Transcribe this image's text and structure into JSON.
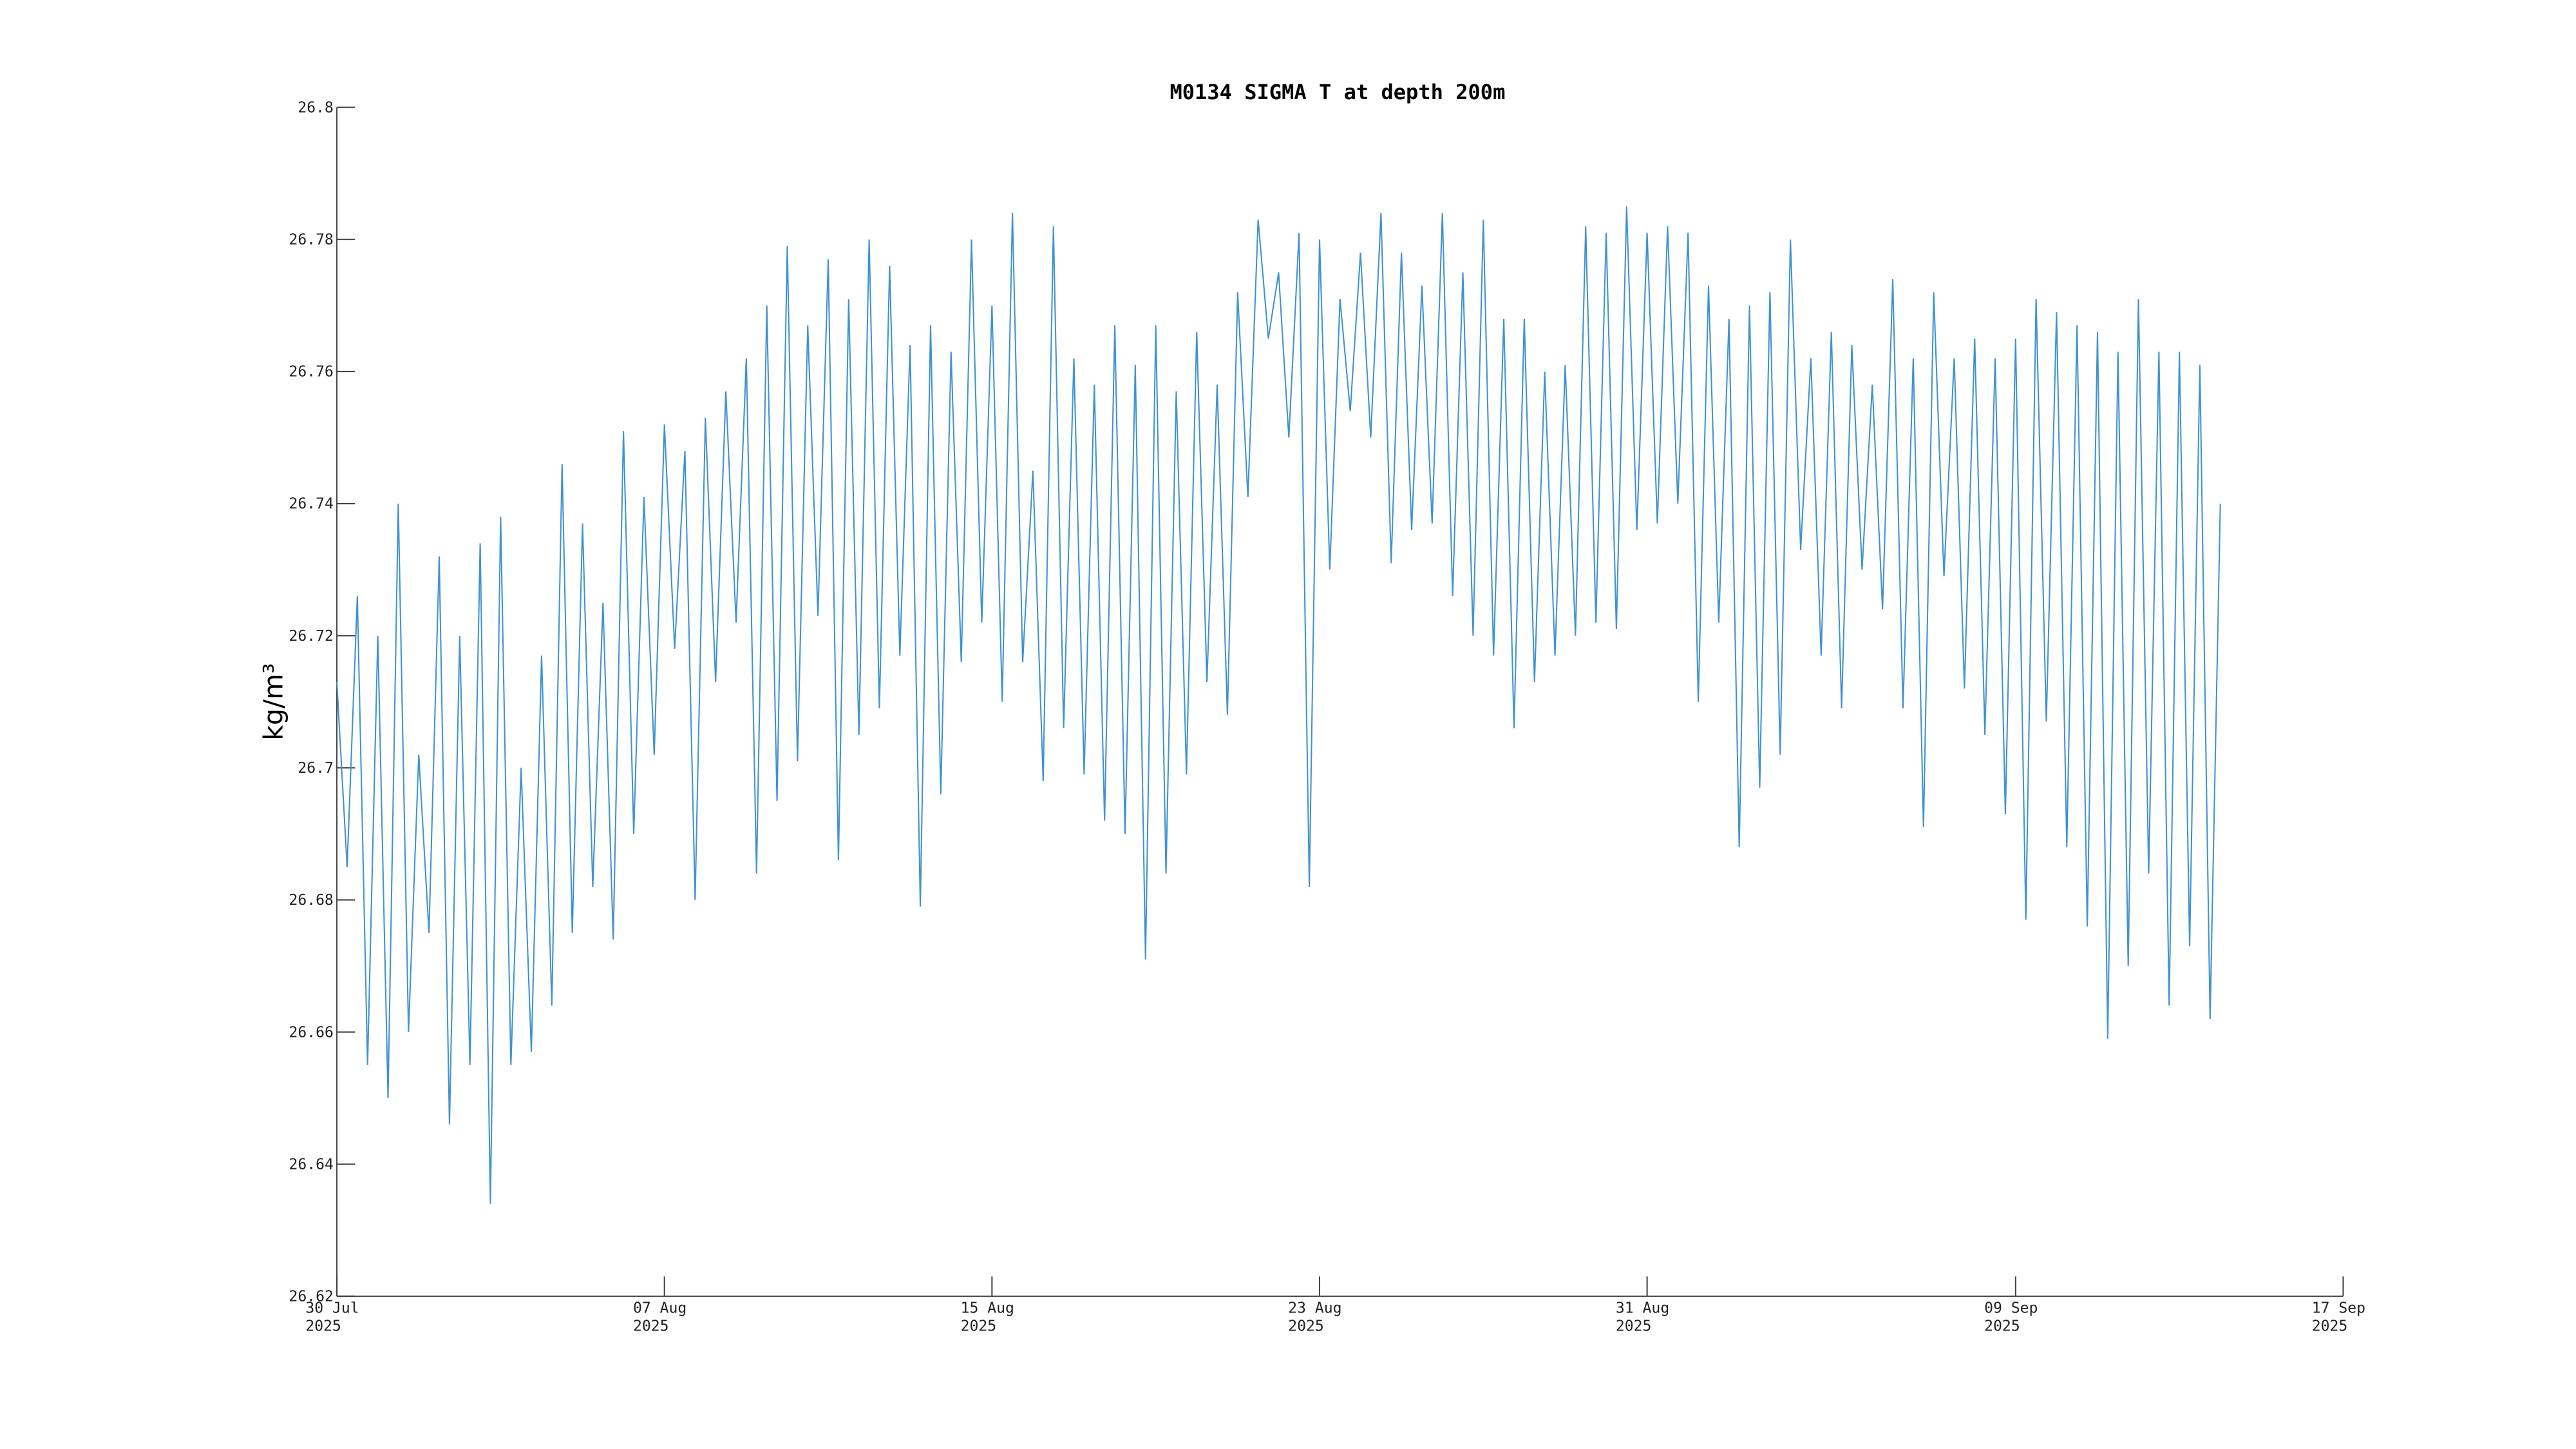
{
  "chart_data": {
    "type": "line",
    "title": "M0134 SIGMA T at depth 200m",
    "y_label": "kg/m³",
    "color": "#3f93cf",
    "xlim": [
      0,
      49
    ],
    "xticks": [
      {
        "value": 0,
        "label": "30 Jul\n2025"
      },
      {
        "value": 8,
        "label": "07 Aug\n2025"
      },
      {
        "value": 16,
        "label": "15 Aug\n2025"
      },
      {
        "value": 24,
        "label": "23 Aug\n2025"
      },
      {
        "value": 32,
        "label": "31 Aug\n2025"
      },
      {
        "value": 41,
        "label": "09 Sep\n2025"
      },
      {
        "value": 49,
        "label": "17 Sep\n2025"
      }
    ],
    "ylim": [
      26.62,
      26.8
    ],
    "yticks": [
      26.62,
      26.64,
      26.66,
      26.68,
      26.7,
      26.72,
      26.74,
      26.76,
      26.78,
      26.8
    ],
    "x": [
      0,
      0.25,
      0.5,
      0.75,
      1,
      1.25,
      1.5,
      1.75,
      2,
      2.25,
      2.5,
      2.75,
      3,
      3.25,
      3.5,
      3.75,
      4,
      4.25,
      4.5,
      4.75,
      5,
      5.25,
      5.5,
      5.75,
      6,
      6.25,
      6.5,
      6.75,
      7,
      7.25,
      7.5,
      7.75,
      8,
      8.25,
      8.5,
      8.75,
      9,
      9.25,
      9.5,
      9.75,
      10,
      10.25,
      10.5,
      10.75,
      11,
      11.25,
      11.5,
      11.75,
      12,
      12.25,
      12.5,
      12.75,
      13,
      13.25,
      13.5,
      13.75,
      14,
      14.25,
      14.5,
      14.75,
      15,
      15.25,
      15.5,
      15.75,
      16,
      16.25,
      16.5,
      16.75,
      17,
      17.25,
      17.5,
      17.75,
      18,
      18.25,
      18.5,
      18.75,
      19,
      19.25,
      19.5,
      19.75,
      20,
      20.25,
      20.5,
      20.75,
      21,
      21.25,
      21.5,
      21.75,
      22,
      22.25,
      22.5,
      22.75,
      23,
      23.25,
      23.5,
      23.75,
      24,
      24.25,
      24.5,
      24.75,
      25,
      25.25,
      25.5,
      25.75,
      26,
      26.25,
      26.5,
      26.75,
      27,
      27.25,
      27.5,
      27.75,
      28,
      28.25,
      28.5,
      28.75,
      29,
      29.25,
      29.5,
      29.75,
      30,
      30.25,
      30.5,
      30.75,
      31,
      31.25,
      31.5,
      31.75,
      32,
      32.25,
      32.5,
      32.75,
      33,
      33.25,
      33.5,
      33.75,
      34,
      34.25,
      34.5,
      34.75,
      35,
      35.25,
      35.5,
      35.75,
      36,
      36.25,
      36.5,
      36.75,
      37,
      37.25,
      37.5,
      37.75,
      38,
      38.25,
      38.5,
      38.75,
      39,
      39.25,
      39.5,
      39.75,
      40,
      40.25,
      40.5,
      40.75,
      41,
      41.25,
      41.5,
      41.75,
      42,
      42.25,
      42.5,
      42.75,
      43,
      43.25,
      43.5,
      43.75,
      44,
      44.25,
      44.5,
      44.75,
      45,
      45.25,
      45.5,
      45.75,
      46
    ],
    "values": [
      26.713,
      26.685,
      26.726,
      26.655,
      26.72,
      26.65,
      26.74,
      26.66,
      26.702,
      26.675,
      26.732,
      26.646,
      26.72,
      26.655,
      26.734,
      26.634,
      26.738,
      26.655,
      26.7,
      26.657,
      26.717,
      26.664,
      26.746,
      26.675,
      26.737,
      26.682,
      26.725,
      26.674,
      26.751,
      26.69,
      26.741,
      26.702,
      26.752,
      26.718,
      26.748,
      26.68,
      26.753,
      26.713,
      26.757,
      26.722,
      26.762,
      26.684,
      26.77,
      26.695,
      26.779,
      26.701,
      26.767,
      26.723,
      26.777,
      26.686,
      26.771,
      26.705,
      26.78,
      26.709,
      26.776,
      26.717,
      26.764,
      26.679,
      26.767,
      26.696,
      26.763,
      26.716,
      26.78,
      26.722,
      26.77,
      26.71,
      26.784,
      26.716,
      26.745,
      26.698,
      26.782,
      26.706,
      26.762,
      26.699,
      26.758,
      26.692,
      26.767,
      26.69,
      26.761,
      26.671,
      26.767,
      26.684,
      26.757,
      26.699,
      26.766,
      26.713,
      26.758,
      26.708,
      26.772,
      26.741,
      26.783,
      26.765,
      26.775,
      26.75,
      26.781,
      26.682,
      26.78,
      26.73,
      26.771,
      26.754,
      26.778,
      26.75,
      26.784,
      26.731,
      26.778,
      26.736,
      26.773,
      26.737,
      26.784,
      26.726,
      26.775,
      26.72,
      26.783,
      26.717,
      26.768,
      26.706,
      26.768,
      26.713,
      26.76,
      26.717,
      26.761,
      26.72,
      26.782,
      26.722,
      26.781,
      26.721,
      26.785,
      26.736,
      26.781,
      26.737,
      26.782,
      26.74,
      26.781,
      26.71,
      26.773,
      26.722,
      26.768,
      26.688,
      26.77,
      26.697,
      26.772,
      26.702,
      26.78,
      26.733,
      26.762,
      26.717,
      26.766,
      26.709,
      26.764,
      26.73,
      26.758,
      26.724,
      26.774,
      26.709,
      26.762,
      26.691,
      26.772,
      26.729,
      26.762,
      26.712,
      26.765,
      26.705,
      26.762,
      26.693,
      26.765,
      26.677,
      26.771,
      26.707,
      26.769,
      26.688,
      26.767,
      26.676,
      26.766,
      26.659,
      26.763,
      26.67,
      26.771,
      26.684,
      26.763,
      26.664,
      26.763,
      26.673,
      26.761,
      26.662,
      26.74
    ]
  }
}
